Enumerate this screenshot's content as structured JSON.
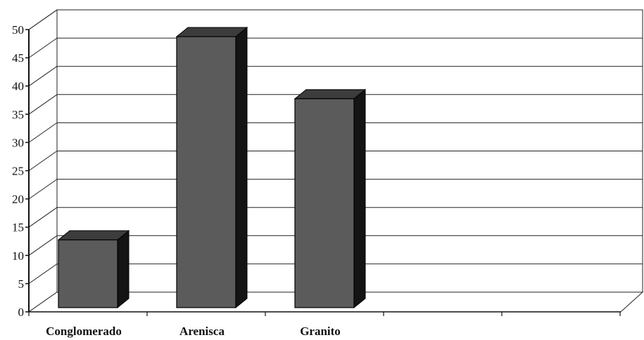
{
  "chart_data": {
    "type": "bar",
    "style": "3d-column",
    "categories": [
      "Conglomerado",
      "Arenisca",
      "Granito"
    ],
    "values": [
      12,
      48,
      37
    ],
    "ylim": [
      0,
      50
    ],
    "yticks": [
      0,
      5,
      10,
      15,
      20,
      25,
      30,
      35,
      40,
      45,
      50
    ],
    "grid": true,
    "legend": "none",
    "colors": {
      "bar_front": "#5b5b5b",
      "bar_top": "#3c3c3c",
      "bar_side": "#141414",
      "grid": "#222222",
      "axis": "#111111"
    }
  }
}
